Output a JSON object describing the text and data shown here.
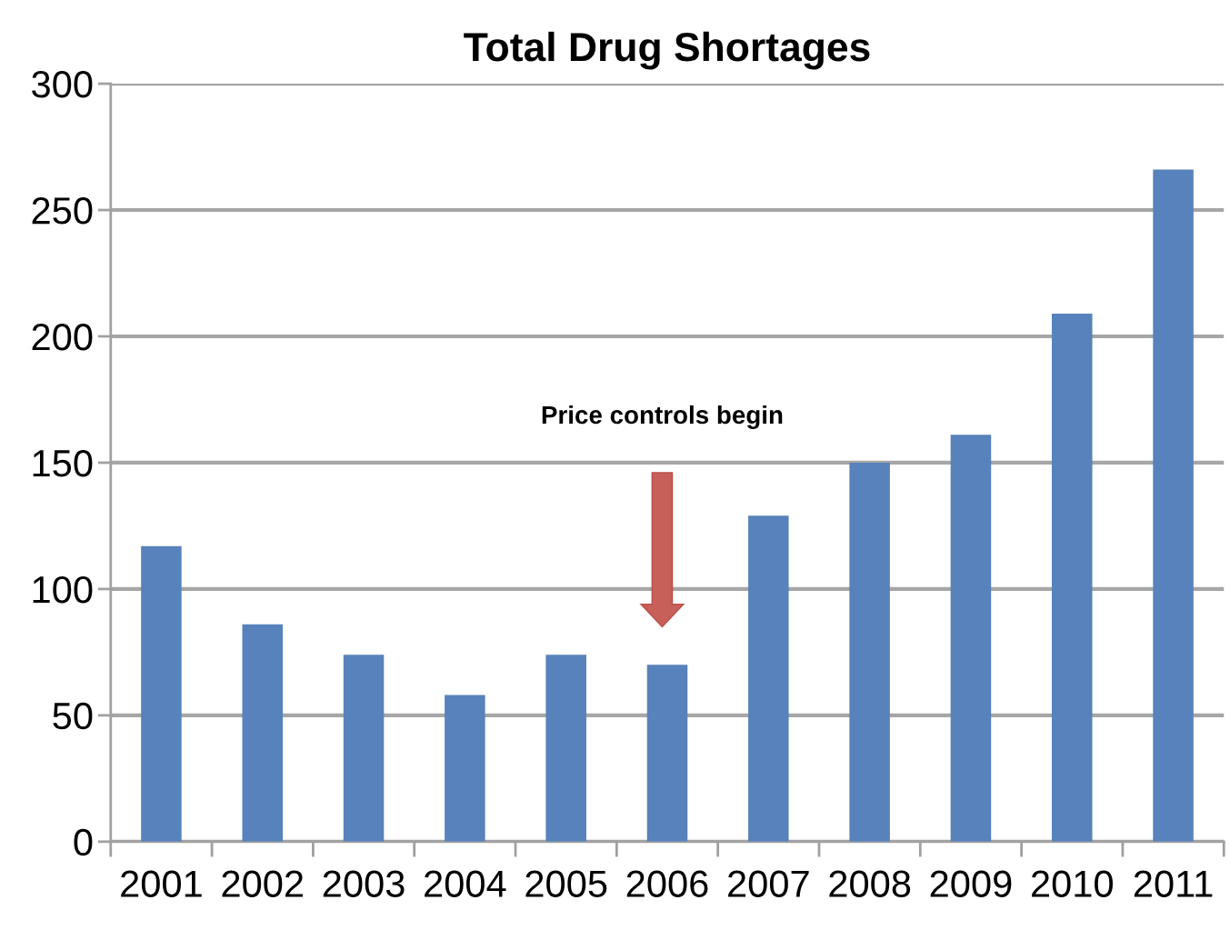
{
  "chart_data": {
    "type": "bar",
    "title": "Total Drug Shortages",
    "categories": [
      "2001",
      "2002",
      "2003",
      "2004",
      "2005",
      "2006",
      "2007",
      "2008",
      "2009",
      "2010",
      "2011"
    ],
    "values": [
      117,
      86,
      74,
      58,
      74,
      70,
      129,
      150,
      161,
      209,
      266
    ],
    "color": "#5782bb",
    "ylim": [
      0,
      300
    ],
    "yticks": [
      0,
      50,
      100,
      150,
      200,
      250,
      300
    ],
    "grid": "y",
    "annotations": [
      "Price controls begin"
    ]
  }
}
